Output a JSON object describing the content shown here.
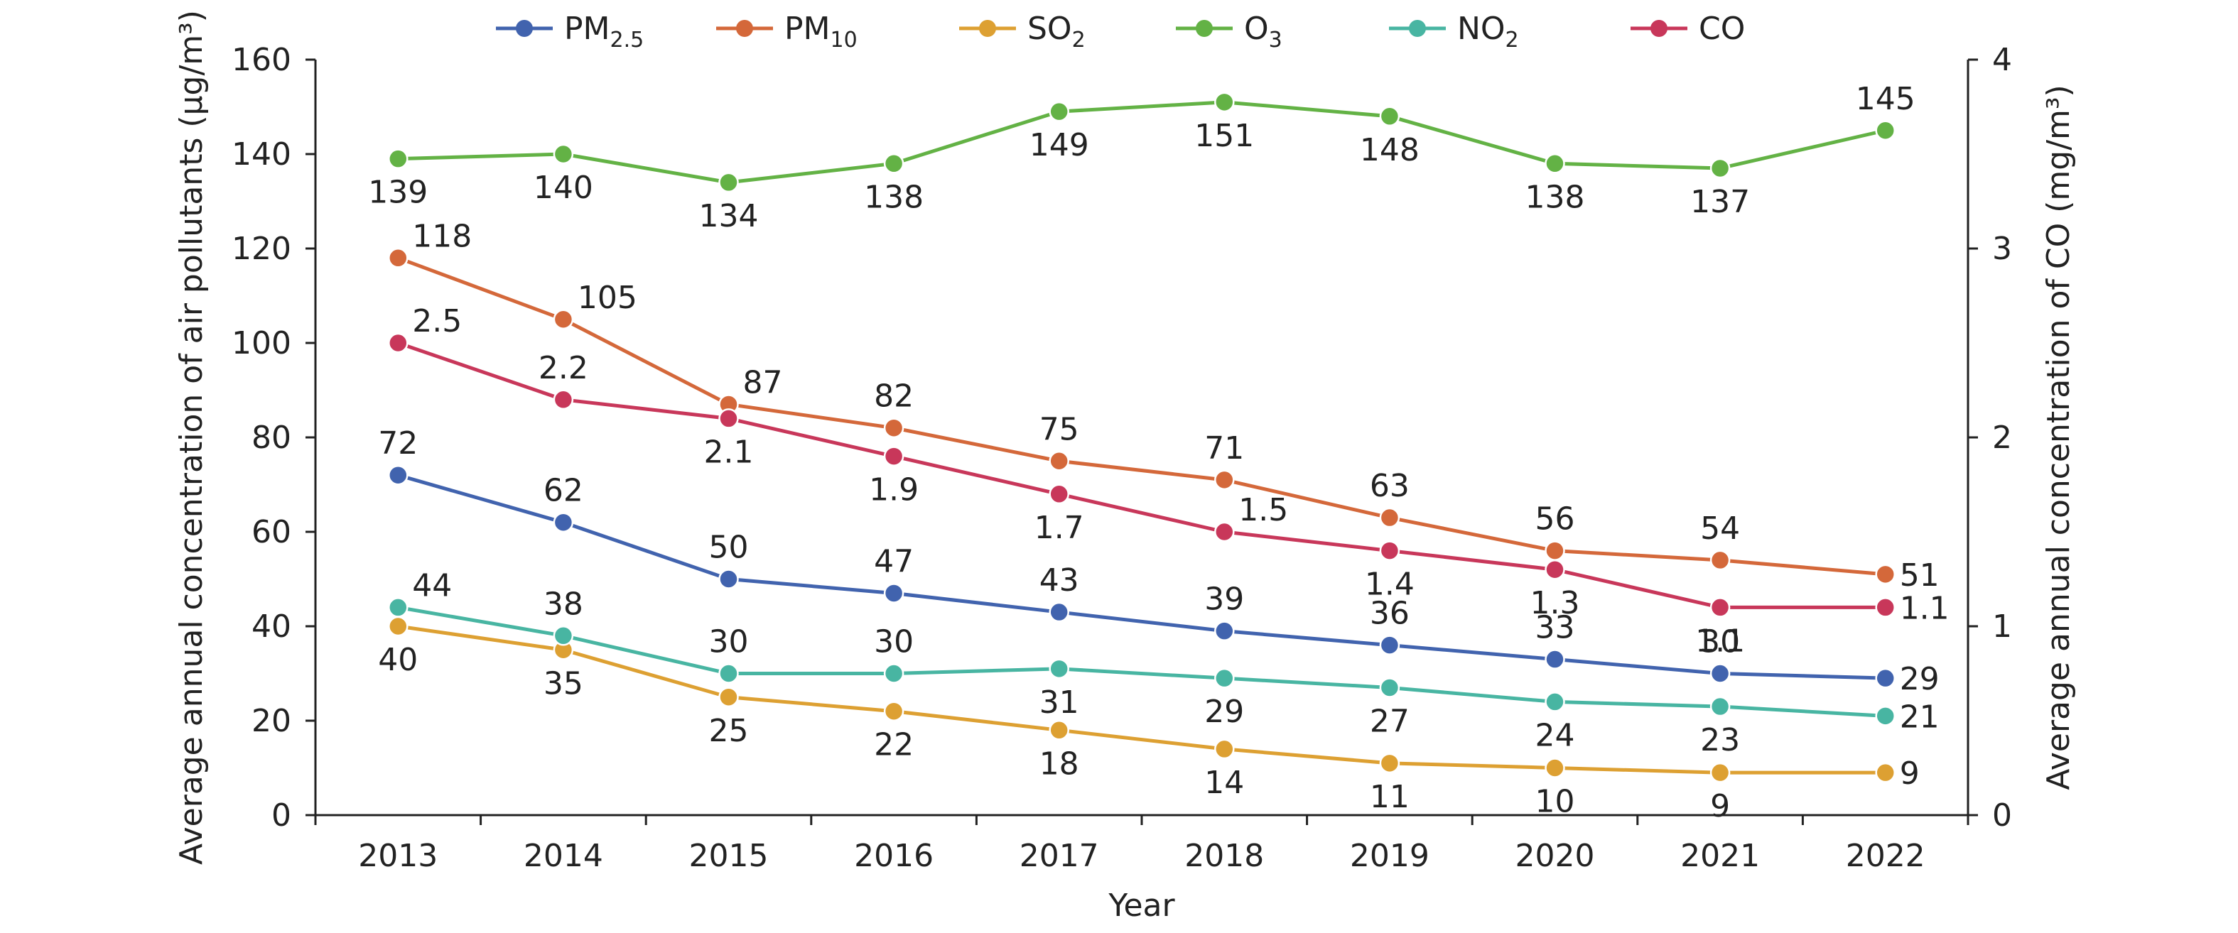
{
  "chart_data": {
    "type": "line",
    "xlabel": "Year",
    "ylabel": "Average annual concentration of air pollutants (μg/m³)",
    "y2label": "Average annual concentration of CO (mg/m³)",
    "x": [
      "2013",
      "2014",
      "2015",
      "2016",
      "2017",
      "2018",
      "2019",
      "2020",
      "2021",
      "2022"
    ],
    "ylim": [
      0,
      160
    ],
    "yticks": [
      0,
      20,
      40,
      60,
      80,
      100,
      120,
      140,
      160
    ],
    "y2lim": [
      0,
      4
    ],
    "y2ticks": [
      0,
      1,
      2,
      3,
      4
    ],
    "legend_position": "top",
    "grid": false,
    "series": [
      {
        "key": "pm25",
        "name": "PM2.5",
        "name_base": "PM",
        "name_sub": "2.5",
        "color": "#4163AE",
        "axis": "left",
        "values": [
          72,
          62,
          50,
          47,
          43,
          39,
          36,
          33,
          30,
          29
        ],
        "labels": [
          "72",
          "62",
          "50",
          "47",
          "43",
          "39",
          "36",
          "33",
          "30",
          "29"
        ]
      },
      {
        "key": "pm10",
        "name": "PM10",
        "name_base": "PM",
        "name_sub": "10",
        "color": "#D4683A",
        "axis": "left",
        "values": [
          118,
          105,
          87,
          82,
          75,
          71,
          63,
          56,
          54,
          51
        ],
        "labels": [
          "118",
          "105",
          "87",
          "82",
          "75",
          "71",
          "63",
          "56",
          "54",
          "51"
        ]
      },
      {
        "key": "so2",
        "name": "SO2",
        "name_base": "SO",
        "name_sub": "2",
        "color": "#DDA032",
        "axis": "left",
        "values": [
          40,
          35,
          25,
          22,
          18,
          14,
          11,
          10,
          9,
          9
        ],
        "labels": [
          "40",
          "35",
          "25",
          "22",
          "18",
          "14",
          "11",
          "10",
          "9",
          "9"
        ]
      },
      {
        "key": "o3",
        "name": "O3",
        "name_base": "O",
        "name_sub": "3",
        "color": "#63B245",
        "axis": "left",
        "values": [
          139,
          140,
          134,
          138,
          149,
          151,
          148,
          138,
          137,
          145
        ],
        "labels": [
          "139",
          "140",
          "134",
          "138",
          "149",
          "151",
          "148",
          "138",
          "137",
          "145"
        ]
      },
      {
        "key": "no2",
        "name": "NO2",
        "name_base": "NO",
        "name_sub": "2",
        "color": "#48B5A2",
        "axis": "left",
        "values": [
          44,
          38,
          30,
          30,
          31,
          29,
          27,
          24,
          23,
          21
        ],
        "labels": [
          "44",
          "38",
          "30",
          "30",
          "31",
          "29",
          "27",
          "24",
          "23",
          "21"
        ]
      },
      {
        "key": "co",
        "name": "CO",
        "name_base": "CO",
        "name_sub": "",
        "color": "#C8375A",
        "axis": "right",
        "values": [
          2.5,
          2.2,
          2.1,
          1.9,
          1.7,
          1.5,
          1.4,
          1.3,
          1.1,
          1.1
        ],
        "labels": [
          "2.5",
          "2.2",
          "2.1",
          "1.9",
          "1.7",
          "1.5",
          "1.4",
          "1.3",
          "1.1",
          "1.1"
        ]
      }
    ]
  }
}
